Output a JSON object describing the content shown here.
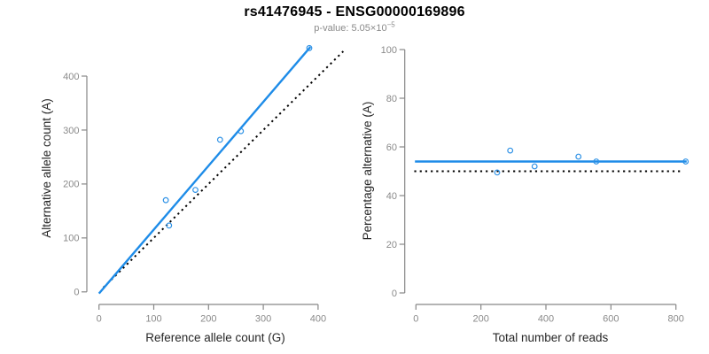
{
  "header": {
    "title": "rs41476945 - ENSG00000169896",
    "subtitle_prefix": "p-value: 5.05×10",
    "subtitle_exponent": "−5"
  },
  "colors": {
    "accent_blue": "#1e8ce8",
    "point_blue": "#2f92e6",
    "dotted_line_black": "#000000",
    "axis_gray": "#878787",
    "tick_label_gray": "#8a8a8a",
    "axis_title_dark": "#262626",
    "subtitle_gray": "#8a8a8a",
    "background": "#ffffff"
  },
  "chart_data": [
    {
      "type": "scatter",
      "panel": "left",
      "xlabel": "Reference allele count (G)",
      "ylabel": "Alternative allele count (A)",
      "xlim": [
        -18,
        446
      ],
      "ylim": [
        -18,
        472
      ],
      "x_ticks": [
        0,
        100,
        200,
        300,
        400
      ],
      "y_ticks": [
        0,
        100,
        200,
        300,
        400
      ],
      "grid": false,
      "legend": null,
      "points": [
        [
          384,
          452
        ],
        [
          259,
          298
        ],
        [
          221,
          282
        ],
        [
          176,
          189
        ],
        [
          122,
          170
        ],
        [
          128,
          123
        ]
      ],
      "lines": [
        {
          "name": "identity-line",
          "style": "dotted",
          "color": "#000000",
          "x1": 8,
          "y1": 8,
          "x2": 446,
          "y2": 446
        },
        {
          "name": "fit-line",
          "style": "solid",
          "color": "#1e8ce8",
          "x1": 0,
          "y1": -3,
          "x2": 386,
          "y2": 454
        }
      ]
    },
    {
      "type": "scatter",
      "panel": "right",
      "xlabel": "Total number of reads",
      "ylabel": "Percentage alternative (A)",
      "xlim": [
        -33,
        863
      ],
      "ylim": [
        -4,
        104
      ],
      "x_ticks": [
        0,
        200,
        400,
        600,
        800
      ],
      "y_ticks": [
        0,
        20,
        40,
        60,
        80,
        100
      ],
      "grid": false,
      "legend": null,
      "points": [
        [
          250,
          49.5
        ],
        [
          290,
          58.5
        ],
        [
          365,
          52
        ],
        [
          500,
          56
        ],
        [
          555,
          54
        ],
        [
          830,
          54
        ]
      ],
      "lines": [
        {
          "name": "null-line",
          "style": "dotted",
          "color": "#000000",
          "x1": -5,
          "y1": 50,
          "x2": 818,
          "y2": 50
        },
        {
          "name": "fit-line",
          "style": "solid",
          "color": "#1e8ce8",
          "x1": -3,
          "y1": 54,
          "x2": 833,
          "y2": 54
        }
      ]
    }
  ]
}
